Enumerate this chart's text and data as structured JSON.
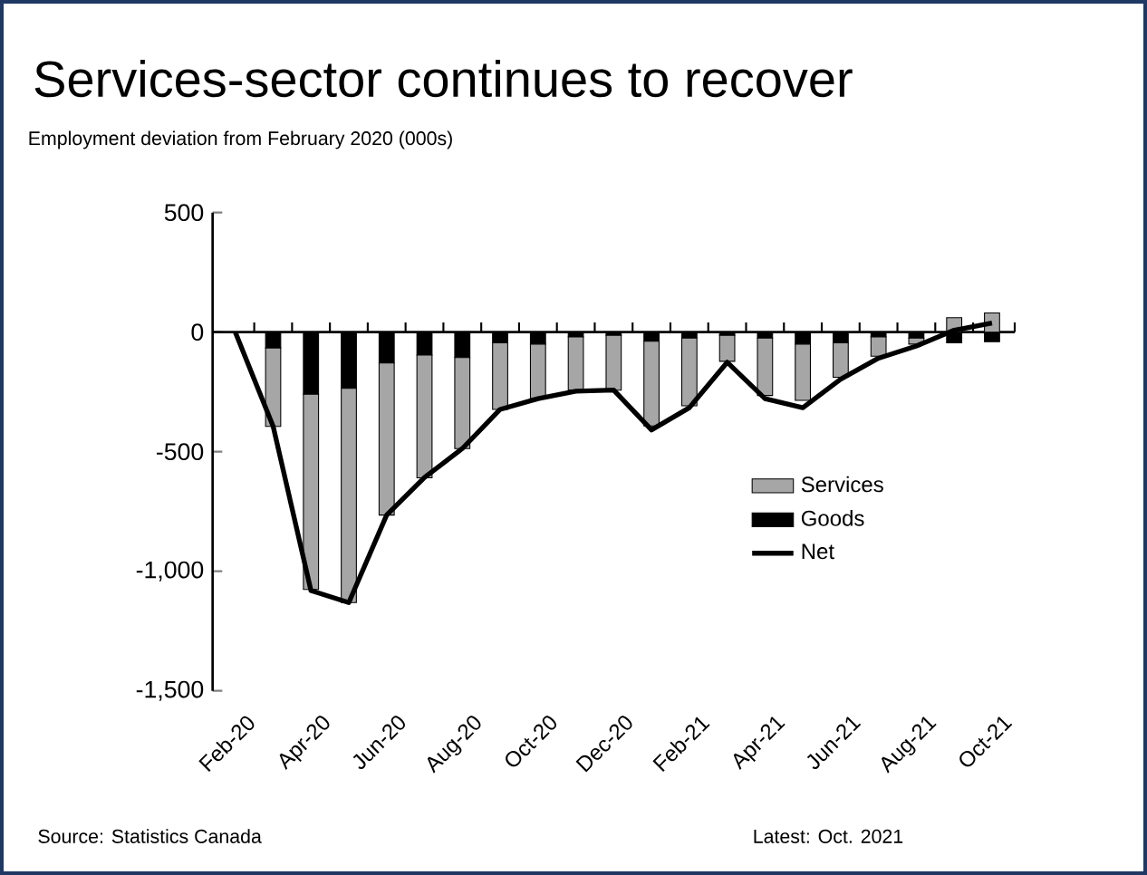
{
  "chart_data": {
    "type": "bar",
    "stacked": true,
    "title": "Services-sector continues to recover",
    "subtitle": "Employment deviation from February 2020 (000s)",
    "categories": [
      "Feb-20",
      null,
      "Apr-20",
      null,
      "Jun-20",
      null,
      "Aug-20",
      null,
      "Oct-20",
      null,
      "Dec-20",
      null,
      "Feb-21",
      null,
      "Apr-21",
      null,
      "Jun-21",
      null,
      "Aug-21",
      null,
      "Oct-21"
    ],
    "series": [
      {
        "name": "Goods",
        "color": "#000000",
        "values": [
          0,
          -66,
          -260,
          -235,
          -129,
          -96,
          -106,
          -45,
          -50,
          -20,
          -13,
          -38,
          -25,
          -13,
          -25,
          -50,
          -45,
          -20,
          -25,
          -45,
          -40
        ]
      },
      {
        "name": "Services",
        "color": "#a6a6a6",
        "values": [
          0,
          -328,
          -816,
          -896,
          -636,
          -513,
          -381,
          -278,
          -227,
          -222,
          -230,
          -354,
          -283,
          -109,
          -240,
          -235,
          -144,
          -81,
          -25,
          60,
          80
        ]
      },
      {
        "name": "Net",
        "type": "line",
        "color": "#000000",
        "values": [
          0,
          -394,
          -1081,
          -1131,
          -765,
          -608,
          -487,
          -323,
          -278,
          -247,
          -242,
          -409,
          -316,
          -126,
          -278,
          -316,
          -197,
          -109,
          -58,
          8,
          38
        ]
      }
    ],
    "ylim": [
      -1500,
      500
    ],
    "yticks": [
      {
        "value": -1500,
        "label": "-1,500"
      },
      {
        "value": -1000,
        "label": "-1,000"
      },
      -500,
      0,
      500
    ],
    "legend": "right",
    "annotations": [
      "Source: Statistics Canada",
      "Latest: Oct. 2021"
    ]
  }
}
